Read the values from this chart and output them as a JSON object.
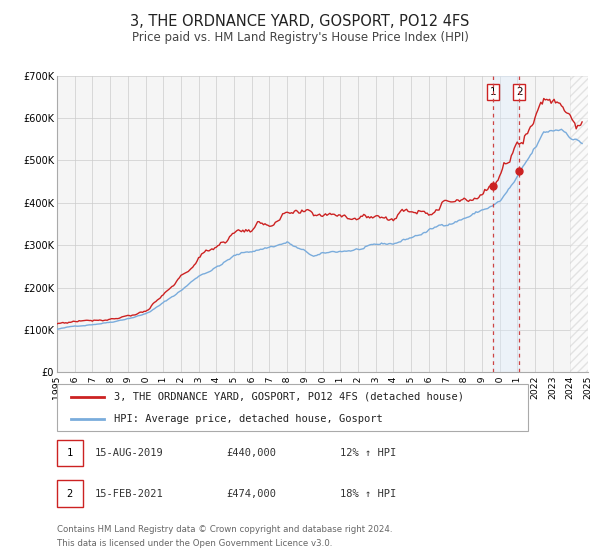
{
  "title": "3, THE ORDNANCE YARD, GOSPORT, PO12 4FS",
  "subtitle": "Price paid vs. HM Land Registry's House Price Index (HPI)",
  "legend_label_red": "3, THE ORDNANCE YARD, GOSPORT, PO12 4FS (detached house)",
  "legend_label_blue": "HPI: Average price, detached house, Gosport",
  "footnote1": "Contains HM Land Registry data © Crown copyright and database right 2024.",
  "footnote2": "This data is licensed under the Open Government Licence v3.0.",
  "event1_label": "1",
  "event1_date": "15-AUG-2019",
  "event1_price": "£440,000",
  "event1_hpi": "12% ↑ HPI",
  "event2_label": "2",
  "event2_date": "15-FEB-2021",
  "event2_price": "£474,000",
  "event2_hpi": "18% ↑ HPI",
  "event1_x": 2019.62,
  "event2_x": 2021.12,
  "event1_y_red": 440000,
  "event2_y_red": 474000,
  "ylim": [
    0,
    700000
  ],
  "xlim": [
    1995,
    2025
  ],
  "yticks": [
    0,
    100000,
    200000,
    300000,
    400000,
    500000,
    600000,
    700000
  ],
  "ytick_labels": [
    "£0",
    "£100K",
    "£200K",
    "£300K",
    "£400K",
    "£500K",
    "£600K",
    "£700K"
  ],
  "red_color": "#cc2222",
  "blue_color": "#7aacdc",
  "dashed_line_color": "#cc4444",
  "shade_color": "#ddeeff",
  "hatch_color": "#cccccc",
  "background_color": "#f5f5f5",
  "grid_color": "#cccccc",
  "title_fontsize": 10.5,
  "subtitle_fontsize": 8.5,
  "axis_fontsize": 7,
  "legend_fontsize": 7.5,
  "table_fontsize": 7.5
}
